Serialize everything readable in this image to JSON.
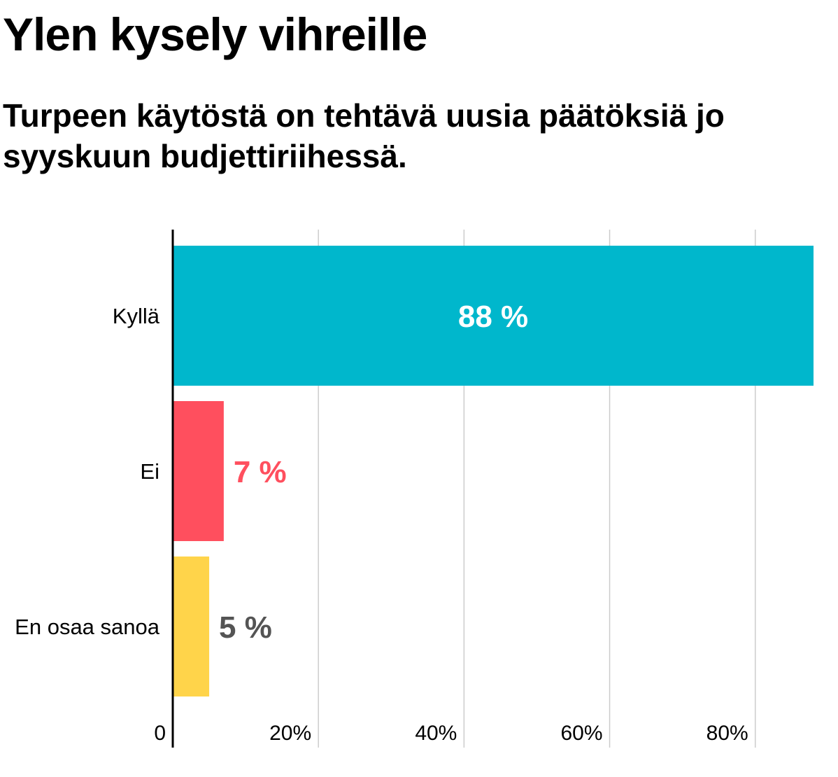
{
  "chart_data": {
    "type": "bar",
    "orientation": "horizontal",
    "title": "Ylen kysely vihreille",
    "subtitle": "Turpeen käytöstä on tehtävä uusia päätöksiä jo syyskuun budjettiriihessä.",
    "categories": [
      "Kyllä",
      "Ei",
      "En osaa sanoa"
    ],
    "values": [
      88,
      7,
      5
    ],
    "value_labels": [
      "88 %",
      "7 %",
      "5 %"
    ],
    "bar_colors": [
      "#00b7cc",
      "#ff4f5e",
      "#ffd44a"
    ],
    "value_label_colors": [
      "#ffffff",
      "#ff4f5e",
      "#545454"
    ],
    "value_label_inside": [
      true,
      false,
      false
    ],
    "xlim": [
      0,
      88
    ],
    "xticks": [
      0,
      20,
      40,
      60,
      80
    ],
    "xtick_labels": [
      "0",
      "20%",
      "40%",
      "60%",
      "80%"
    ],
    "xlabel": "",
    "ylabel": "",
    "grid": true,
    "legend": "none"
  },
  "colors": {
    "grid": "#cccccc",
    "axis": "#000000"
  }
}
